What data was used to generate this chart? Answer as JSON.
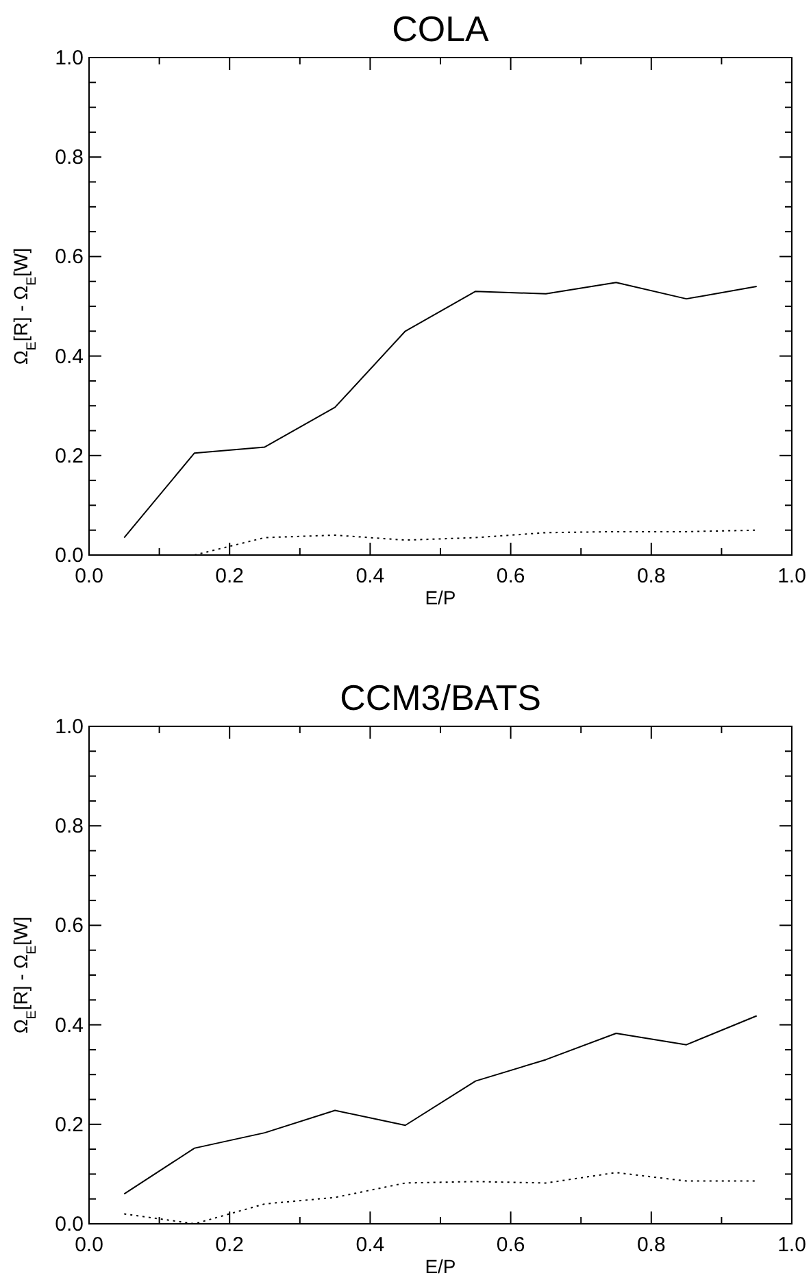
{
  "chart_data": [
    {
      "type": "line",
      "title": "COLA",
      "xlabel": "E/P",
      "ylabel": "Ω$_{E}$[R] - Ω$_{E}$[W]",
      "x": [
        0.05,
        0.15,
        0.25,
        0.35,
        0.45,
        0.55,
        0.65,
        0.75,
        0.85,
        0.95
      ],
      "xlim": [
        0,
        1
      ],
      "ylim": [
        0,
        1
      ],
      "xticks": [
        {
          "value": 0,
          "label": "0.0"
        },
        {
          "value": 0.1,
          "label": null
        },
        0.2,
        {
          "value": 0.3,
          "label": null
        },
        0.4,
        {
          "value": 0.5,
          "label": null
        },
        0.6,
        {
          "value": 0.7,
          "label": null
        },
        0.8,
        {
          "value": 0.9,
          "label": null
        },
        {
          "value": 1,
          "label": "1.0"
        }
      ],
      "yticks": [
        {
          "value": 0,
          "label": "0.0"
        },
        {
          "value": 0.05,
          "label": null
        },
        {
          "value": 0.1,
          "label": null
        },
        {
          "value": 0.15,
          "label": null
        },
        0.2,
        {
          "value": 0.25,
          "label": null
        },
        {
          "value": 0.3,
          "label": null
        },
        {
          "value": 0.35,
          "label": null
        },
        0.4,
        {
          "value": 0.45,
          "label": null
        },
        {
          "value": 0.5,
          "label": null
        },
        {
          "value": 0.55,
          "label": null
        },
        0.6,
        {
          "value": 0.65,
          "label": null
        },
        {
          "value": 0.7,
          "label": null
        },
        {
          "value": 0.75,
          "label": null
        },
        0.8,
        {
          "value": 0.85,
          "label": null
        },
        {
          "value": 0.9,
          "label": null
        },
        {
          "value": 0.95,
          "label": null
        },
        {
          "value": 1,
          "label": "1.0"
        }
      ],
      "grid": false,
      "marker": "none",
      "series": [
        {
          "color": "#000000",
          "line_style": "solid",
          "values": [
            0.035,
            0.205,
            0.217,
            0.297,
            0.45,
            0.53,
            0.525,
            0.548,
            0.515,
            0.54
          ]
        },
        {
          "color": "#000000",
          "line_style": "dotted",
          "values": [
            null,
            0.0,
            0.035,
            0.04,
            0.03,
            0.035,
            0.045,
            0.047,
            0.047,
            0.05
          ]
        }
      ]
    },
    {
      "type": "line",
      "title": "CCM3/BATS",
      "xlabel": "E/P",
      "ylabel": "Ω$_{E}$[R] - Ω$_{E}$[W]",
      "x": [
        0.05,
        0.15,
        0.25,
        0.35,
        0.45,
        0.55,
        0.65,
        0.75,
        0.85,
        0.95
      ],
      "xlim": [
        0,
        1
      ],
      "ylim": [
        0,
        1
      ],
      "xticks": [
        {
          "value": 0,
          "label": "0.0"
        },
        {
          "value": 0.1,
          "label": null
        },
        0.2,
        {
          "value": 0.3,
          "label": null
        },
        0.4,
        {
          "value": 0.5,
          "label": null
        },
        0.6,
        {
          "value": 0.7,
          "label": null
        },
        0.8,
        {
          "value": 0.9,
          "label": null
        },
        {
          "value": 1,
          "label": "1.0"
        }
      ],
      "yticks": [
        {
          "value": 0,
          "label": "0.0"
        },
        {
          "value": 0.05,
          "label": null
        },
        {
          "value": 0.1,
          "label": null
        },
        {
          "value": 0.15,
          "label": null
        },
        0.2,
        {
          "value": 0.25,
          "label": null
        },
        {
          "value": 0.3,
          "label": null
        },
        {
          "value": 0.35,
          "label": null
        },
        0.4,
        {
          "value": 0.45,
          "label": null
        },
        {
          "value": 0.5,
          "label": null
        },
        {
          "value": 0.55,
          "label": null
        },
        0.6,
        {
          "value": 0.65,
          "label": null
        },
        {
          "value": 0.7,
          "label": null
        },
        {
          "value": 0.75,
          "label": null
        },
        0.8,
        {
          "value": 0.85,
          "label": null
        },
        {
          "value": 0.9,
          "label": null
        },
        {
          "value": 0.95,
          "label": null
        },
        {
          "value": 1,
          "label": "1.0"
        }
      ],
      "grid": false,
      "marker": "none",
      "series": [
        {
          "color": "#000000",
          "line_style": "solid",
          "values": [
            0.06,
            0.152,
            0.183,
            0.228,
            0.198,
            0.287,
            0.33,
            0.383,
            0.36,
            0.418
          ]
        },
        {
          "color": "#000000",
          "line_style": "dotted",
          "values": [
            0.02,
            0.0,
            0.04,
            0.053,
            0.082,
            0.085,
            0.082,
            0.103,
            0.086,
            0.086
          ]
        }
      ]
    }
  ]
}
